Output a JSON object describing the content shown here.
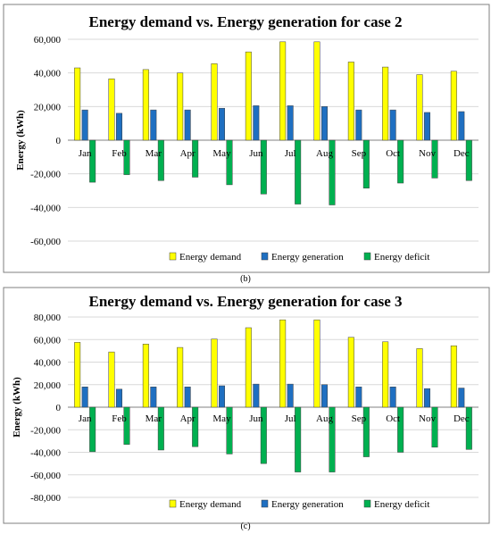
{
  "chart_data": [
    {
      "type": "bar",
      "title": "Energy demand vs. Energy generation for case 2",
      "ylabel": "Energy (kWh)",
      "xlabel": "",
      "caption": "(b)",
      "ylim": [
        -60000,
        60000
      ],
      "yticks": [
        -60000,
        -40000,
        -20000,
        0,
        20000,
        40000,
        60000
      ],
      "ytick_labels": [
        "-60,000",
        "-40,000",
        "-20,000",
        "0",
        "20,000",
        "40,000",
        "60,000"
      ],
      "grid": true,
      "legend_position": "bottom",
      "categories": [
        "Jan",
        "Feb",
        "Mar",
        "Apr",
        "May",
        "Jun",
        "Jul",
        "Aug",
        "Sep",
        "Oct",
        "Nov",
        "Dec"
      ],
      "series": [
        {
          "name": "Energy demand",
          "color": "#ffff00",
          "values": [
            43000,
            36500,
            42000,
            40000,
            45500,
            52500,
            58500,
            58500,
            46500,
            43500,
            39000,
            41000
          ]
        },
        {
          "name": "Energy generation",
          "color": "#1f6fc1",
          "values": [
            18000,
            16000,
            18000,
            18000,
            19000,
            20500,
            20500,
            20000,
            18000,
            18000,
            16500,
            17000
          ]
        },
        {
          "name": "Energy deficit",
          "color": "#00b050",
          "values": [
            -25000,
            -20500,
            -24000,
            -22000,
            -26500,
            -32000,
            -38000,
            -38500,
            -28500,
            -25500,
            -22500,
            -24000
          ]
        }
      ]
    },
    {
      "type": "bar",
      "title": "Energy demand vs. Energy generation for case 3",
      "ylabel": "Energy (kWh)",
      "xlabel": "",
      "caption": "(c)",
      "ylim": [
        -80000,
        80000
      ],
      "yticks": [
        -80000,
        -60000,
        -40000,
        -20000,
        0,
        20000,
        40000,
        60000,
        80000
      ],
      "ytick_labels": [
        "-80,000",
        "-60,000",
        "-40,000",
        "-20,000",
        "0",
        "20,000",
        "40,000",
        "60,000",
        "80,000"
      ],
      "grid": true,
      "legend_position": "bottom",
      "categories": [
        "Jan",
        "Feb",
        "Mar",
        "Apr",
        "May",
        "Jun",
        "Jul",
        "Aug",
        "Sep",
        "Oct",
        "Nov",
        "Dec"
      ],
      "series": [
        {
          "name": "Energy demand",
          "color": "#ffff00",
          "values": [
            57500,
            49000,
            56000,
            53000,
            60500,
            70500,
            77500,
            77500,
            62000,
            58000,
            52000,
            54500
          ]
        },
        {
          "name": "Energy generation",
          "color": "#1f6fc1",
          "values": [
            18000,
            16000,
            18000,
            18000,
            19000,
            20500,
            20500,
            20000,
            18000,
            18000,
            16500,
            17000
          ]
        },
        {
          "name": "Energy deficit",
          "color": "#00b050",
          "values": [
            -39500,
            -33000,
            -38000,
            -35000,
            -41500,
            -50000,
            -57500,
            -57500,
            -44000,
            -40000,
            -35500,
            -37500
          ]
        }
      ]
    }
  ]
}
